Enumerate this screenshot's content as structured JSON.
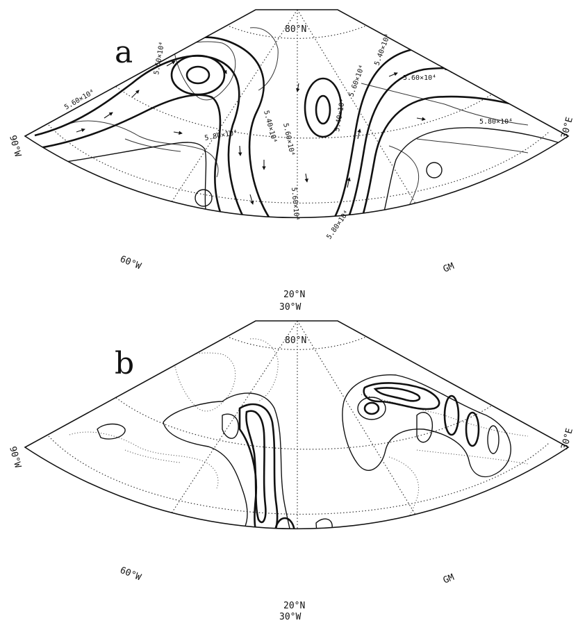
{
  "panels": [
    {
      "id": "a",
      "letter": "a",
      "labels": {
        "pole_lat": "80°N",
        "equator_lat": "20°N",
        "lon_bottom": "30°W",
        "lon_left": "90°W",
        "lon_right": "30°E",
        "lon_60w": "60°W",
        "lon_gm": "GM"
      },
      "contour_labels": [
        "5.60×10⁴",
        "5.50×10⁴",
        "5.80×10⁴",
        "5.40×10⁴",
        "5.60×10⁴",
        "5.60×10⁴",
        "5.40×10⁴",
        "5.60×10⁴",
        "5.80×10⁴",
        "5.40×10⁴",
        "5.60×10⁴",
        "5.80×10⁴"
      ]
    },
    {
      "id": "b",
      "letter": "b",
      "labels": {
        "pole_lat": "80°N",
        "equator_lat": "20°N",
        "lon_bottom": "30°W",
        "lon_left": "90°W",
        "lon_right": "30°E",
        "lon_60w": "60°W",
        "lon_gm": "GM"
      }
    }
  ]
}
